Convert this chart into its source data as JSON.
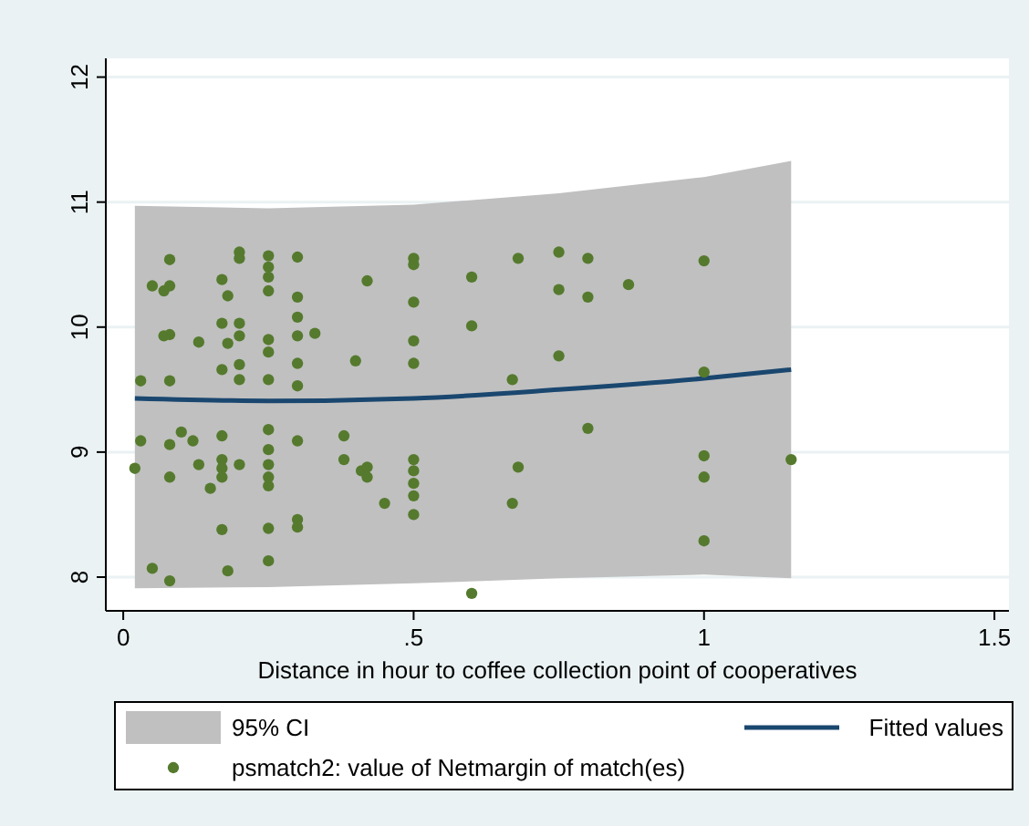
{
  "chart_data": {
    "type": "scatter",
    "xlabel": "Distance in hour to coffee collection point of cooperatives",
    "xlim": [
      -0.03,
      1.525
    ],
    "ylim": [
      7.73,
      12.15
    ],
    "xticks": [
      0,
      {
        "value": 0.5,
        "label": ".5"
      },
      1,
      1.5
    ],
    "yticks": [
      8,
      9,
      10,
      11,
      12
    ],
    "grid": "y",
    "legend": "bottom",
    "line_style": "solid",
    "series": [
      {
        "type": "area",
        "name": "95% CI",
        "color": "#c0c0c0"
      },
      {
        "type": "line",
        "name": "Fitted values",
        "color": "#1a476f",
        "marker": "none",
        "x": [
          0.02,
          0.25,
          0.5,
          0.75,
          1.0,
          1.15
        ],
        "values": [
          9.43,
          9.41,
          9.43,
          9.5,
          9.59,
          9.66
        ],
        "lower": [
          7.91,
          7.92,
          7.95,
          7.99,
          8.02,
          7.99
        ],
        "upper": [
          10.97,
          10.95,
          10.98,
          11.07,
          11.2,
          11.33
        ]
      },
      {
        "type": "scatter",
        "marker": "circle",
        "name": "psmatch2: value of Netmargin of match(es)",
        "color": "#557a2e",
        "x": [
          0.03,
          0.08,
          0.08,
          0.05,
          0.07,
          0.08,
          0.07,
          0.08,
          0.13,
          0.17,
          0.18,
          0.17,
          0.2,
          0.18,
          0.2,
          0.17,
          0.2,
          0.2,
          0.2,
          0.2,
          0.25,
          0.25,
          0.25,
          0.25,
          0.25,
          0.25,
          0.25,
          0.3,
          0.3,
          0.3,
          0.3,
          0.3,
          0.3,
          0.33,
          0.4,
          0.42,
          0.5,
          0.5,
          0.5,
          0.5,
          0.5,
          0.6,
          0.6,
          0.68,
          0.67,
          0.75,
          0.75,
          0.75,
          0.8,
          0.8,
          0.87,
          0.8,
          1.0,
          1.0,
          1.0,
          1.0,
          1.15,
          1.0,
          0.03,
          0.02,
          0.08,
          0.1,
          0.12,
          0.08,
          0.13,
          0.17,
          0.17,
          0.17,
          0.17,
          0.2,
          0.15,
          0.25,
          0.25,
          0.25,
          0.25,
          0.25,
          0.3,
          0.38,
          0.38,
          0.41,
          0.17,
          0.25,
          0.3,
          0.3,
          0.05,
          0.08,
          0.18,
          0.25,
          0.42,
          0.42,
          0.45,
          0.5,
          0.5,
          0.5,
          0.5,
          0.5,
          0.68,
          0.67,
          0.6
        ],
        "values": [
          9.57,
          9.57,
          10.54,
          10.33,
          10.29,
          10.33,
          9.93,
          9.94,
          9.88,
          10.38,
          10.25,
          10.03,
          10.03,
          9.87,
          9.93,
          9.66,
          9.7,
          9.58,
          10.6,
          10.55,
          10.57,
          10.48,
          10.4,
          10.29,
          9.9,
          9.8,
          9.58,
          10.56,
          10.24,
          10.08,
          9.93,
          9.71,
          9.53,
          9.95,
          9.73,
          10.37,
          10.55,
          10.5,
          10.2,
          9.89,
          9.71,
          10.4,
          10.01,
          10.55,
          9.58,
          10.6,
          10.3,
          9.77,
          10.55,
          10.24,
          10.34,
          9.19,
          10.53,
          9.64,
          8.97,
          8.8,
          8.94,
          8.29,
          9.09,
          8.87,
          9.06,
          9.16,
          9.09,
          8.8,
          8.9,
          9.13,
          8.94,
          8.87,
          8.8,
          8.9,
          8.71,
          9.18,
          9.02,
          8.9,
          8.8,
          8.73,
          9.09,
          9.13,
          8.94,
          8.85,
          8.38,
          8.39,
          8.46,
          8.4,
          8.07,
          7.97,
          8.05,
          8.13,
          8.88,
          8.8,
          8.59,
          8.94,
          8.85,
          8.75,
          8.65,
          8.5,
          8.88,
          8.59,
          7.87
        ]
      }
    ]
  }
}
